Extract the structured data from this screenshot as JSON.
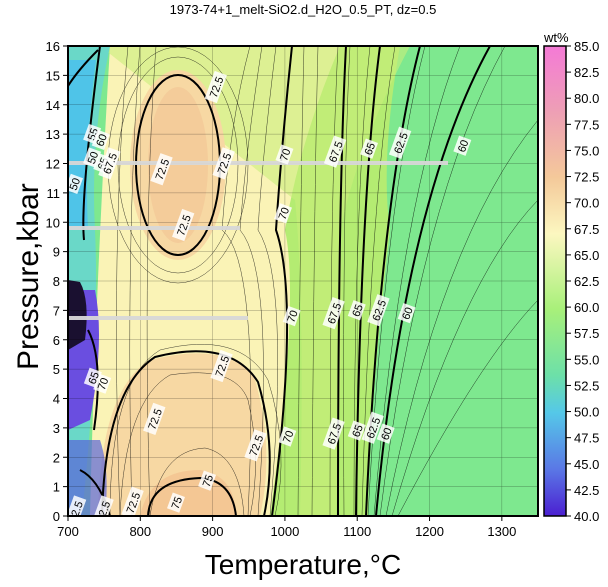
{
  "chart_data": {
    "type": "contour",
    "title": "1973-74+1_melt-SiO2.d_H2O_0.5_PT, dz=0.5",
    "xlabel": "Temperature,°C",
    "ylabel": "Pressure,kbar",
    "xlim": [
      700,
      1350
    ],
    "ylim": [
      0,
      16
    ],
    "x_ticks": [
      "700",
      "800",
      "900",
      "1000",
      "1100",
      "1200",
      "1300"
    ],
    "y_ticks": [
      "0",
      "1",
      "2",
      "3",
      "4",
      "5",
      "6",
      "7",
      "8",
      "9",
      "10",
      "11",
      "12",
      "13",
      "14",
      "15",
      "16"
    ],
    "colorbar": {
      "unit": "wt%",
      "range": [
        40,
        85
      ],
      "ticks": [
        "40.0",
        "42.5",
        "45.0",
        "47.5",
        "50.0",
        "52.5",
        "55.0",
        "57.5",
        "60.0",
        "62.5",
        "65.0",
        "67.5",
        "70.0",
        "72.5",
        "75.0",
        "77.5",
        "80.0",
        "82.5",
        "85.0"
      ]
    },
    "contour_labels": [
      {
        "text": "72.5",
        "x": 905,
        "y": 14.6
      },
      {
        "text": "72.5",
        "x": 916,
        "y": 12.0
      },
      {
        "text": "72.5",
        "x": 830,
        "y": 11.8
      },
      {
        "text": "72.5",
        "x": 860,
        "y": 9.9
      },
      {
        "text": "70",
        "x": 1000,
        "y": 12.3
      },
      {
        "text": "70",
        "x": 998,
        "y": 10.3
      },
      {
        "text": "70",
        "x": 1010,
        "y": 6.8
      },
      {
        "text": "70",
        "x": 1004,
        "y": 2.7
      },
      {
        "text": "67.5",
        "x": 1070,
        "y": 12.4
      },
      {
        "text": "67.5",
        "x": 1068,
        "y": 6.9
      },
      {
        "text": "67.5",
        "x": 1068,
        "y": 2.8
      },
      {
        "text": "65",
        "x": 1117,
        "y": 12.5
      },
      {
        "text": "65",
        "x": 1100,
        "y": 7.0
      },
      {
        "text": "65",
        "x": 1100,
        "y": 2.9
      },
      {
        "text": "62.5",
        "x": 1160,
        "y": 12.7
      },
      {
        "text": "62.5",
        "x": 1130,
        "y": 7.0
      },
      {
        "text": "62.5",
        "x": 1122,
        "y": 3.0
      },
      {
        "text": "60",
        "x": 1246,
        "y": 12.6
      },
      {
        "text": "60",
        "x": 1169,
        "y": 6.9
      },
      {
        "text": "60",
        "x": 1140,
        "y": 2.8
      },
      {
        "text": "72.5",
        "x": 913,
        "y": 5.1
      },
      {
        "text": "72.5",
        "x": 820,
        "y": 3.3
      },
      {
        "text": "72.5",
        "x": 960,
        "y": 2.4
      },
      {
        "text": "75",
        "x": 893,
        "y": 1.2
      },
      {
        "text": "75",
        "x": 850,
        "y": 0.45
      },
      {
        "text": "72.5",
        "x": 790,
        "y": 0.45
      },
      {
        "text": "70",
        "x": 748,
        "y": 4.5
      },
      {
        "text": "65",
        "x": 735,
        "y": 4.7
      },
      {
        "text": "55",
        "x": 734,
        "y": 13.0
      },
      {
        "text": "60",
        "x": 746,
        "y": 12.8
      },
      {
        "text": "50",
        "x": 734,
        "y": 12.2
      },
      {
        "text": "65",
        "x": 748,
        "y": 12.0
      },
      {
        "text": "67.5",
        "x": 758,
        "y": 12.0
      },
      {
        "text": "50",
        "x": 709,
        "y": 11.3
      },
      {
        "text": "2.5",
        "x": 712,
        "y": 0.25
      },
      {
        "text": "2.5",
        "x": 750,
        "y": 0.25
      }
    ]
  }
}
